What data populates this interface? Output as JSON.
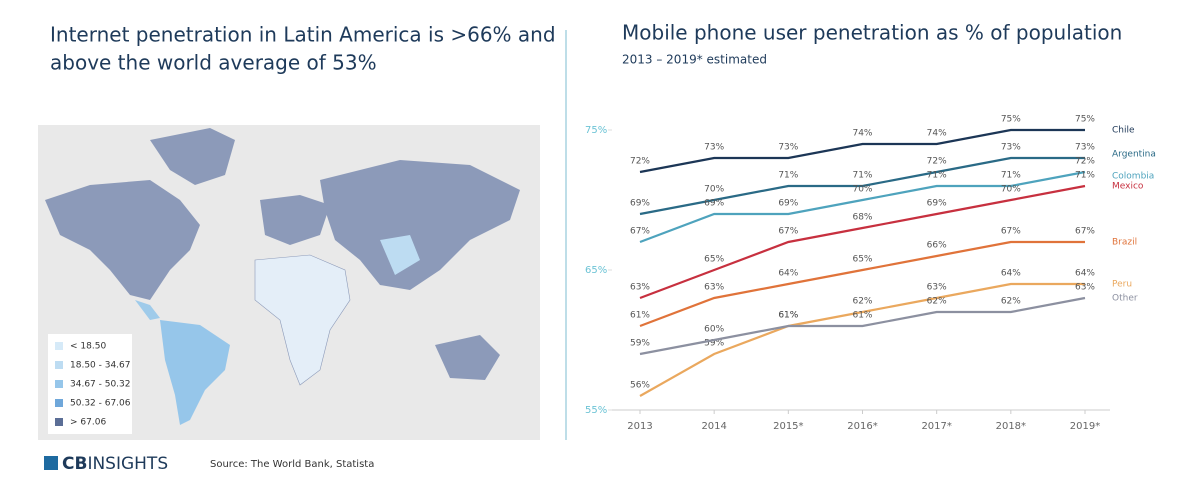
{
  "left": {
    "title": [
      "Internet penetration in Latin America is >66% and",
      "above the world average of 53%"
    ],
    "legend": [
      {
        "label": "< 18.50",
        "color": "#d6eaf8"
      },
      {
        "label": "18.50 - 34.67",
        "color": "#bddcf2"
      },
      {
        "label": "34.67 - 50.32",
        "color": "#96c6ea"
      },
      {
        "label": "50.32 - 67.06",
        "color": "#6fa7da"
      },
      {
        "label": "> 67.06",
        "color": "#5b6e96"
      }
    ],
    "logo": [
      "CB",
      "INSIGHTS"
    ],
    "source": "Source: The World Bank, Statista"
  },
  "chart_data": {
    "type": "line",
    "title": "Mobile phone user penetration as % of population",
    "subtitle": "2013 – 2019* estimated",
    "categories": [
      "2013",
      "2014",
      "2015*",
      "2016*",
      "2017*",
      "2018*",
      "2019*"
    ],
    "ylim": [
      55,
      75
    ],
    "yticks": [
      {
        "value": 55,
        "label": "55%"
      },
      {
        "value": 65,
        "label": "65%"
      },
      {
        "value": 75,
        "label": "75%"
      }
    ],
    "grid": false,
    "series": [
      {
        "name": "Chile",
        "color": "#1c3656",
        "values": [
          72,
          73,
          73,
          74,
          74,
          75,
          75
        ],
        "value_labels": [
          "72%",
          "73%",
          "73%",
          "74%",
          "74%",
          "75%",
          "75%"
        ]
      },
      {
        "name": "Argentina",
        "color": "#2a6a86",
        "values": [
          69,
          70,
          71,
          71,
          72,
          73,
          73
        ],
        "value_labels": [
          "69%",
          "70%",
          "71%",
          "71%",
          "72%",
          "73%",
          "73%"
        ]
      },
      {
        "name": "Colombia",
        "color": "#4ea3bd",
        "values": [
          67,
          69,
          69,
          70,
          71,
          71,
          72
        ],
        "value_labels": [
          "67%",
          "69%",
          "69%",
          "70%",
          "71%",
          "71%",
          "72%"
        ]
      },
      {
        "name": "Mexico",
        "color": "#c7303f",
        "values": [
          63,
          65,
          67,
          68,
          69,
          70,
          71
        ],
        "value_labels": [
          "63%",
          "65%",
          "67%",
          "68%",
          "69%",
          "70%",
          "71%"
        ]
      },
      {
        "name": "Brazil",
        "color": "#e0733a",
        "values": [
          61,
          63,
          64,
          65,
          66,
          67,
          67
        ],
        "value_labels": [
          "61%",
          "63%",
          "64%",
          "65%",
          "66%",
          "67%",
          "67%"
        ]
      },
      {
        "name": "Peru",
        "color": "#eaa85e",
        "values": [
          56,
          59,
          61,
          62,
          63,
          64,
          64
        ],
        "value_labels": [
          "56%",
          "59%",
          "61%",
          "62%",
          "63%",
          "64%",
          "64%"
        ]
      },
      {
        "name": "Other",
        "color": "#8c90a0",
        "values": [
          59,
          60,
          61,
          61,
          62,
          62,
          63
        ],
        "value_labels": [
          "59%",
          "60%",
          "61%",
          "61%",
          "62%",
          "62%",
          "63%"
        ]
      }
    ]
  }
}
